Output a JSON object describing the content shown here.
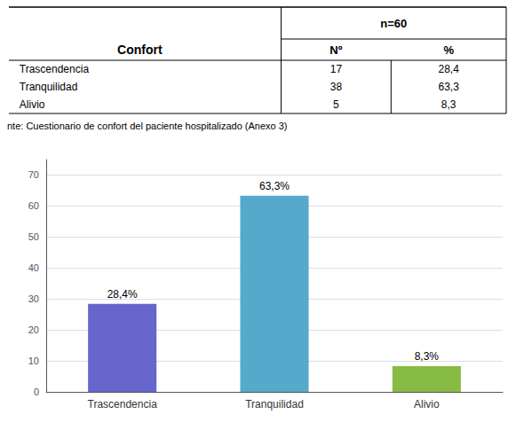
{
  "chart_data": {
    "type": "bar",
    "categories": [
      "Trascendencia",
      "Tranquilidad",
      "Alivio"
    ],
    "values": [
      28.4,
      63.3,
      8.3
    ],
    "value_labels": [
      "28,4%",
      "63,3%",
      "8,3%"
    ],
    "colors": [
      "#6666cc",
      "#55aacc",
      "#88bb44"
    ],
    "ylim": [
      0,
      75
    ],
    "yticks": [
      0,
      10,
      20,
      30,
      40,
      50,
      60,
      70
    ],
    "grid": true,
    "data_labels": true,
    "table": {
      "title": "Confort",
      "n_label": "n=60",
      "columns": [
        "Nº",
        "%"
      ],
      "rows": [
        [
          "Trascendencia",
          "17",
          "28,4"
        ],
        [
          "Tranquilidad",
          "38",
          "63,3"
        ],
        [
          "Alivio",
          "5",
          "8,3"
        ]
      ]
    },
    "source": "nte: Cuestionario de confort del paciente hospitalizado (Anexo 3)"
  }
}
